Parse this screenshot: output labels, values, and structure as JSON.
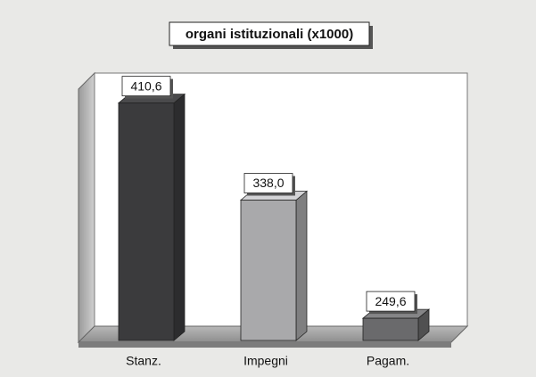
{
  "chart_data": {
    "type": "bar3d",
    "title": "organi istituzionali (x1000)",
    "categories": [
      "Stanz.",
      "Impegni",
      "Pagam."
    ],
    "values": [
      410.6,
      338.0,
      249.6
    ],
    "value_labels": [
      "410,6",
      "338,0",
      "249,6"
    ],
    "colors": [
      "#3b3b3d",
      "#a9a9ab",
      "#6a6a6c"
    ],
    "ylim": [
      233,
      431
    ]
  }
}
